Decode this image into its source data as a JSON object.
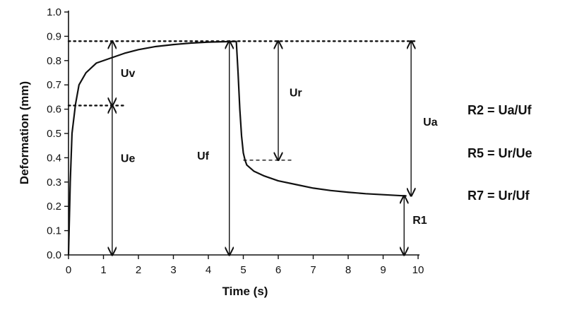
{
  "chart_data": {
    "type": "line",
    "xlabel": "Time (s)",
    "ylabel": "Deformation (mm)",
    "xlim": [
      0,
      10
    ],
    "ylim": [
      0,
      1.0
    ],
    "x_ticks": [
      "0",
      "1",
      "2",
      "3",
      "4",
      "5",
      "6",
      "7",
      "8",
      "9",
      "10"
    ],
    "y_ticks": [
      "0.0",
      "0.1",
      "0.2",
      "0.3",
      "0.4",
      "0.5",
      "0.6",
      "0.7",
      "0.8",
      "0.9",
      "1.0"
    ],
    "grid": false,
    "series": [
      {
        "x": [
          0,
          0.05,
          0.1,
          0.2,
          0.3,
          0.5,
          0.8,
          1.2,
          1.6,
          2.0,
          2.5,
          3.0,
          3.5,
          4.0,
          4.5,
          4.8,
          4.85,
          4.9,
          4.95,
          5.0,
          5.05,
          5.1,
          5.3,
          5.6,
          6.0,
          6.5,
          7.0,
          7.5,
          8.0,
          8.5,
          9.0,
          9.5,
          9.65
        ],
        "y": [
          0.0,
          0.3,
          0.5,
          0.62,
          0.7,
          0.75,
          0.79,
          0.81,
          0.83,
          0.845,
          0.858,
          0.866,
          0.872,
          0.876,
          0.878,
          0.879,
          0.75,
          0.6,
          0.49,
          0.42,
          0.39,
          0.37,
          0.345,
          0.325,
          0.305,
          0.29,
          0.275,
          0.265,
          0.258,
          0.252,
          0.248,
          0.244,
          0.243
        ]
      }
    ],
    "reference_lines": [
      {
        "axis": "y",
        "value": 0.88,
        "x_from": 0,
        "x_to": 10,
        "style": "dotted"
      },
      {
        "axis": "y",
        "value": 0.615,
        "x_from": 0,
        "x_to": 1.6,
        "style": "dotted"
      },
      {
        "axis": "y",
        "value": 0.39,
        "x_from": 5.0,
        "x_to": 6.4,
        "style": "dashed"
      }
    ],
    "annotations": [
      {
        "label": "Uv",
        "x": 1.25,
        "y_from": 0.615,
        "y_to": 0.88,
        "label_x": 1.7,
        "label_y": 0.75
      },
      {
        "label": "Ue",
        "x": 1.25,
        "y_from": 0.0,
        "y_to": 0.615,
        "label_x": 1.7,
        "label_y": 0.4
      },
      {
        "label": "Uf",
        "x": 4.6,
        "y_from": 0.0,
        "y_to": 0.88,
        "label_x": 3.85,
        "label_y": 0.41
      },
      {
        "label": "Ur",
        "x": 6.0,
        "y_from": 0.39,
        "y_to": 0.88,
        "label_x": 6.5,
        "label_y": 0.67
      },
      {
        "label": "Ua",
        "x": 9.8,
        "y_from": 0.243,
        "y_to": 0.88,
        "label_x": 10.35,
        "label_y": 0.55
      },
      {
        "label": "R1",
        "x": 9.6,
        "y_from": 0.0,
        "y_to": 0.243,
        "label_x": 10.05,
        "label_y": 0.145
      }
    ]
  },
  "formulas": [
    "R2 = Ua/Uf",
    "R5 = Ur/Ue",
    "R7 = Ur/Uf"
  ]
}
